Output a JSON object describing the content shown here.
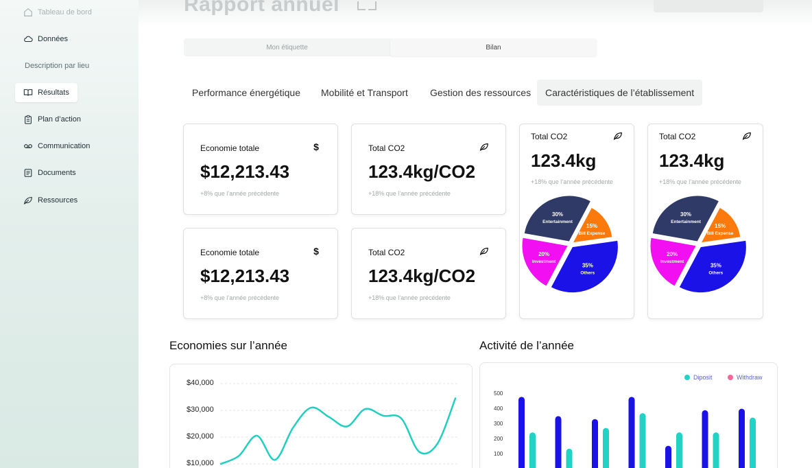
{
  "sidebar": {
    "items": [
      {
        "label": "Tableau de bord"
      },
      {
        "label": "Données"
      },
      {
        "label": "Description par lieu"
      },
      {
        "label": "Résultats"
      },
      {
        "label": "Plan d’action"
      },
      {
        "label": "Communication"
      },
      {
        "label": "Documents"
      },
      {
        "label": "Ressources"
      }
    ]
  },
  "header": {
    "title": "Rapport annuel"
  },
  "segment": {
    "left": "Mon étiquette",
    "right": "Bilan"
  },
  "tabs": [
    {
      "label": "Performance énergétique"
    },
    {
      "label": "Mobilité et Transport"
    },
    {
      "label": "Gestion des ressources"
    },
    {
      "label": "Caractéristiques de l’établissement"
    }
  ],
  "cards": [
    {
      "title": "Economie totale",
      "value": "$12,213.43",
      "sub": "+8% que l’année précédente",
      "icon": "dollar-icon"
    },
    {
      "title": "Total CO2",
      "value": "123.4kg/CO2",
      "sub": "+18% que l’année précédente",
      "icon": "leaf-icon"
    },
    {
      "title": "Economie totale",
      "value": "$12,213.43",
      "sub": "+8% que l’année précédente",
      "icon": "dollar-icon"
    },
    {
      "title": "Total CO2",
      "value": "123.4kg/CO2",
      "sub": "+18% que l’année précédente",
      "icon": "leaf-icon"
    }
  ],
  "pie_cards": [
    {
      "title": "Total CO2",
      "value": "123.4kg",
      "sub": "+18% que l’année précédente"
    },
    {
      "title": "Total CO2",
      "value": "123.4kg",
      "sub": "+18% que l’année précédente"
    }
  ],
  "colors": {
    "entertainment": "#2f3a66",
    "bill_expense": "#fb7a0b",
    "others": "#1a12e6",
    "investment": "#f20ff2",
    "line": "#20cfc0",
    "deposit": "#1a12e6",
    "withdraw": "#22d3c5"
  },
  "chart_data": [
    {
      "type": "pie",
      "title": "Total CO2",
      "slices": [
        {
          "pct": "30%",
          "label": "Entertainment",
          "value": 30
        },
        {
          "pct": "15%",
          "label": "Bill Expense",
          "value": 15
        },
        {
          "pct": "35%",
          "label": "Others",
          "value": 35
        },
        {
          "pct": "20%",
          "label": "Investment",
          "value": 20
        }
      ]
    },
    {
      "type": "pie",
      "title": "Total CO2",
      "slices": [
        {
          "pct": "30%",
          "label": "Entertainment",
          "value": 30
        },
        {
          "pct": "15%",
          "label": "Bill Expense",
          "value": 15
        },
        {
          "pct": "35%",
          "label": "Others",
          "value": 35
        },
        {
          "pct": "20%",
          "label": "Investment",
          "value": 20
        }
      ]
    },
    {
      "type": "line",
      "title": "Economies sur l’année",
      "yticks": [
        "$40,000",
        "$30,000",
        "$20,000",
        "$10,000"
      ],
      "ylim": [
        10000,
        40000
      ],
      "x": [
        0,
        1,
        2,
        3,
        4,
        5,
        6,
        7,
        8,
        9,
        10,
        11,
        12,
        13
      ],
      "values": [
        10000,
        13000,
        20500,
        11500,
        23500,
        31000,
        27500,
        24000,
        30500,
        28000,
        27000,
        14500,
        17500,
        34500
      ]
    },
    {
      "type": "bar",
      "title": "Activité de l’année",
      "yticks": [
        "500",
        "400",
        "300",
        "200",
        "100"
      ],
      "ylim": [
        0,
        500
      ],
      "legend": [
        "Diposit",
        "Withdraw"
      ],
      "series": [
        {
          "name": "Diposit",
          "values": [
            480,
            350,
            330,
            480,
            150,
            390,
            400
          ]
        },
        {
          "name": "Withdraw",
          "values": [
            240,
            130,
            270,
            370,
            240,
            240,
            340
          ]
        }
      ]
    }
  ]
}
